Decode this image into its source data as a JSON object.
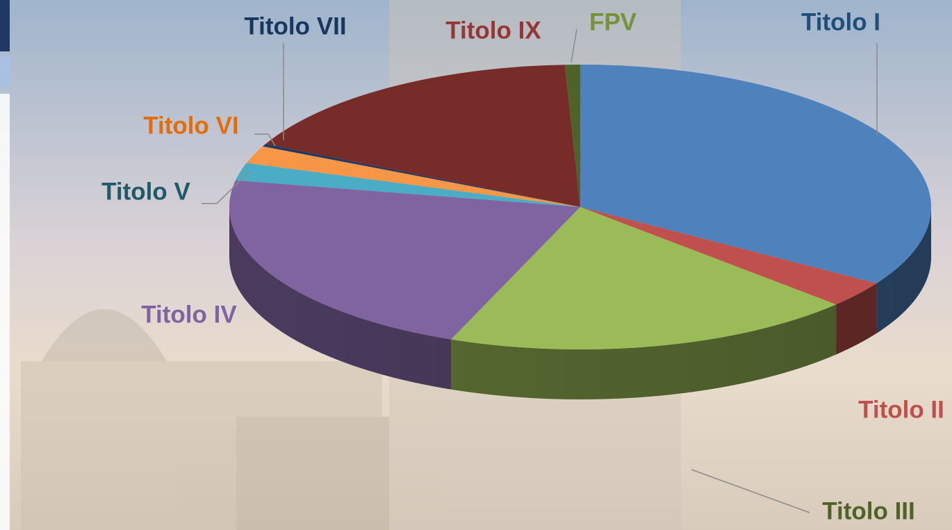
{
  "chart_data": {
    "type": "pie3d",
    "categories": [
      "Titolo I",
      "Titolo II",
      "Titolo III",
      "Titolo IV",
      "Titolo V",
      "Titolo VI",
      "Titolo VII",
      "Titolo IX",
      "FPV"
    ],
    "values": [
      34,
      3,
      19,
      22,
      2,
      2,
      0.3,
      17,
      0.7
    ],
    "colors": [
      "#4f81bd",
      "#c0504d",
      "#9bbb59",
      "#8064a2",
      "#4bacc6",
      "#f79646",
      "#1f3864",
      "#772c2a",
      "#4f6228"
    ]
  }
}
